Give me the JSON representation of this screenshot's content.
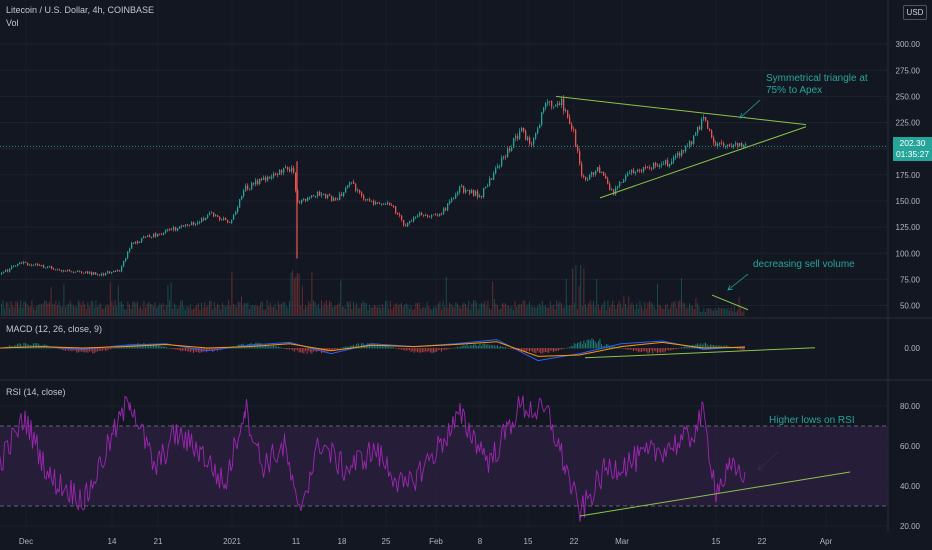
{
  "header": {
    "symbol_line": "Litecoin / U.S. Dollar, 4h, COINBASE",
    "vol_label": "Vol",
    "currency_button": "USD",
    "macd_label": "MACD (12, 26, close, 9)",
    "rsi_label": "RSI (14, close)"
  },
  "last_price": {
    "value": "202.30",
    "countdown": "01:35:27"
  },
  "annotations": {
    "triangle_line1": "Symmetrical triangle at",
    "triangle_line2": "75% to Apex",
    "volume": "decreasing sell volume",
    "rsi": "Higher lows on RSI"
  },
  "colors": {
    "background": "#131722",
    "up": "#26a69a",
    "down": "#ef5350",
    "trendline": "#8bc34a",
    "macd": "#2962ff",
    "signal": "#ff9800",
    "rsi": "#9c27b0",
    "rsi_band": "#2a1e3d"
  },
  "chart_data": [
    {
      "type": "candlestick",
      "title": "Litecoin / U.S. Dollar, 4h, COINBASE",
      "y_ticks": [
        50,
        75,
        100,
        125,
        150,
        175,
        200,
        225,
        250,
        275,
        300
      ],
      "ylim": [
        40,
        325
      ],
      "x_tick_labels": [
        "Dec",
        "14",
        "21",
        "2021",
        "11",
        "18",
        "25",
        "Feb",
        "8",
        "15",
        "22",
        "Mar",
        "15",
        "22",
        "Apr"
      ],
      "close_path": [
        {
          "x": 0,
          "y": 80
        },
        {
          "x": 20,
          "y": 91
        },
        {
          "x": 40,
          "y": 88
        },
        {
          "x": 60,
          "y": 84
        },
        {
          "x": 80,
          "y": 82
        },
        {
          "x": 100,
          "y": 80
        },
        {
          "x": 120,
          "y": 84
        },
        {
          "x": 130,
          "y": 108
        },
        {
          "x": 150,
          "y": 117
        },
        {
          "x": 170,
          "y": 122
        },
        {
          "x": 190,
          "y": 128
        },
        {
          "x": 210,
          "y": 137
        },
        {
          "x": 230,
          "y": 130
        },
        {
          "x": 245,
          "y": 162
        },
        {
          "x": 265,
          "y": 172
        },
        {
          "x": 280,
          "y": 178
        },
        {
          "x": 292,
          "y": 182
        },
        {
          "x": 297,
          "y": 150
        },
        {
          "x": 320,
          "y": 157
        },
        {
          "x": 335,
          "y": 150
        },
        {
          "x": 350,
          "y": 168
        },
        {
          "x": 365,
          "y": 150
        },
        {
          "x": 390,
          "y": 148
        },
        {
          "x": 405,
          "y": 126
        },
        {
          "x": 420,
          "y": 137
        },
        {
          "x": 440,
          "y": 137
        },
        {
          "x": 460,
          "y": 162
        },
        {
          "x": 480,
          "y": 155
        },
        {
          "x": 500,
          "y": 187
        },
        {
          "x": 520,
          "y": 218
        },
        {
          "x": 530,
          "y": 203
        },
        {
          "x": 545,
          "y": 242
        },
        {
          "x": 560,
          "y": 246
        },
        {
          "x": 572,
          "y": 220
        },
        {
          "x": 582,
          "y": 170
        },
        {
          "x": 598,
          "y": 180
        },
        {
          "x": 612,
          "y": 157
        },
        {
          "x": 630,
          "y": 178
        },
        {
          "x": 650,
          "y": 183
        },
        {
          "x": 670,
          "y": 187
        },
        {
          "x": 688,
          "y": 202
        },
        {
          "x": 703,
          "y": 228
        },
        {
          "x": 716,
          "y": 203
        },
        {
          "x": 730,
          "y": 203
        },
        {
          "x": 745,
          "y": 202.3
        }
      ],
      "last_price": 202.3,
      "trendlines": [
        {
          "from": {
            "x": 556,
            "y": 250
          },
          "to": {
            "x": 806,
            "y": 223
          }
        },
        {
          "from": {
            "x": 600,
            "y": 153
          },
          "to": {
            "x": 806,
            "y": 221
          }
        },
        {
          "from": {
            "x": 712,
            "y": 60
          },
          "to": {
            "x": 748,
            "y": 46
          }
        }
      ]
    },
    {
      "type": "line",
      "title": "MACD (12, 26, close, 9)",
      "y_ticks": [
        0.0
      ],
      "ylim": [
        -1,
        1
      ],
      "series": [
        {
          "name": "MACD",
          "values": [
            0,
            0.1,
            -0.1,
            0.2,
            0.3,
            -0.2,
            0.2,
            0.4,
            -0.4,
            0.3,
            0.1,
            0.3,
            0.6,
            -0.9,
            -0.4,
            0.3,
            0.5,
            -0.1,
            0.1
          ]
        },
        {
          "name": "Signal",
          "values": [
            0,
            0.1,
            0,
            0.1,
            0.25,
            0,
            0.1,
            0.3,
            -0.2,
            0.2,
            0.1,
            0.25,
            0.45,
            -0.6,
            -0.5,
            0.1,
            0.4,
            0,
            0.05
          ]
        }
      ],
      "trendlines": [
        {
          "from": {
            "x": 585,
            "y": -0.7
          },
          "to": {
            "x": 815,
            "y": 0.02
          }
        }
      ]
    },
    {
      "type": "line",
      "title": "RSI (14, close)",
      "y_ticks": [
        20,
        40,
        60,
        80
      ],
      "ylim": [
        18,
        92
      ],
      "bands": {
        "upper": 70,
        "lower": 30
      },
      "points": [
        {
          "x": 0,
          "y": 52
        },
        {
          "x": 25,
          "y": 74
        },
        {
          "x": 50,
          "y": 44
        },
        {
          "x": 85,
          "y": 33
        },
        {
          "x": 110,
          "y": 62
        },
        {
          "x": 130,
          "y": 84
        },
        {
          "x": 155,
          "y": 48
        },
        {
          "x": 175,
          "y": 66
        },
        {
          "x": 200,
          "y": 58
        },
        {
          "x": 225,
          "y": 40
        },
        {
          "x": 245,
          "y": 80
        },
        {
          "x": 262,
          "y": 50
        },
        {
          "x": 285,
          "y": 60
        },
        {
          "x": 298,
          "y": 26
        },
        {
          "x": 320,
          "y": 62
        },
        {
          "x": 345,
          "y": 48
        },
        {
          "x": 375,
          "y": 58
        },
        {
          "x": 405,
          "y": 38
        },
        {
          "x": 432,
          "y": 55
        },
        {
          "x": 460,
          "y": 75
        },
        {
          "x": 490,
          "y": 52
        },
        {
          "x": 520,
          "y": 80
        },
        {
          "x": 548,
          "y": 76
        },
        {
          "x": 565,
          "y": 50
        },
        {
          "x": 580,
          "y": 26
        },
        {
          "x": 605,
          "y": 48
        },
        {
          "x": 630,
          "y": 52
        },
        {
          "x": 660,
          "y": 58
        },
        {
          "x": 690,
          "y": 64
        },
        {
          "x": 703,
          "y": 76
        },
        {
          "x": 716,
          "y": 38
        },
        {
          "x": 730,
          "y": 48
        },
        {
          "x": 745,
          "y": 47
        }
      ],
      "trendlines": [
        {
          "from": {
            "x": 580,
            "y": 25
          },
          "to": {
            "x": 850,
            "y": 47
          }
        }
      ]
    }
  ]
}
